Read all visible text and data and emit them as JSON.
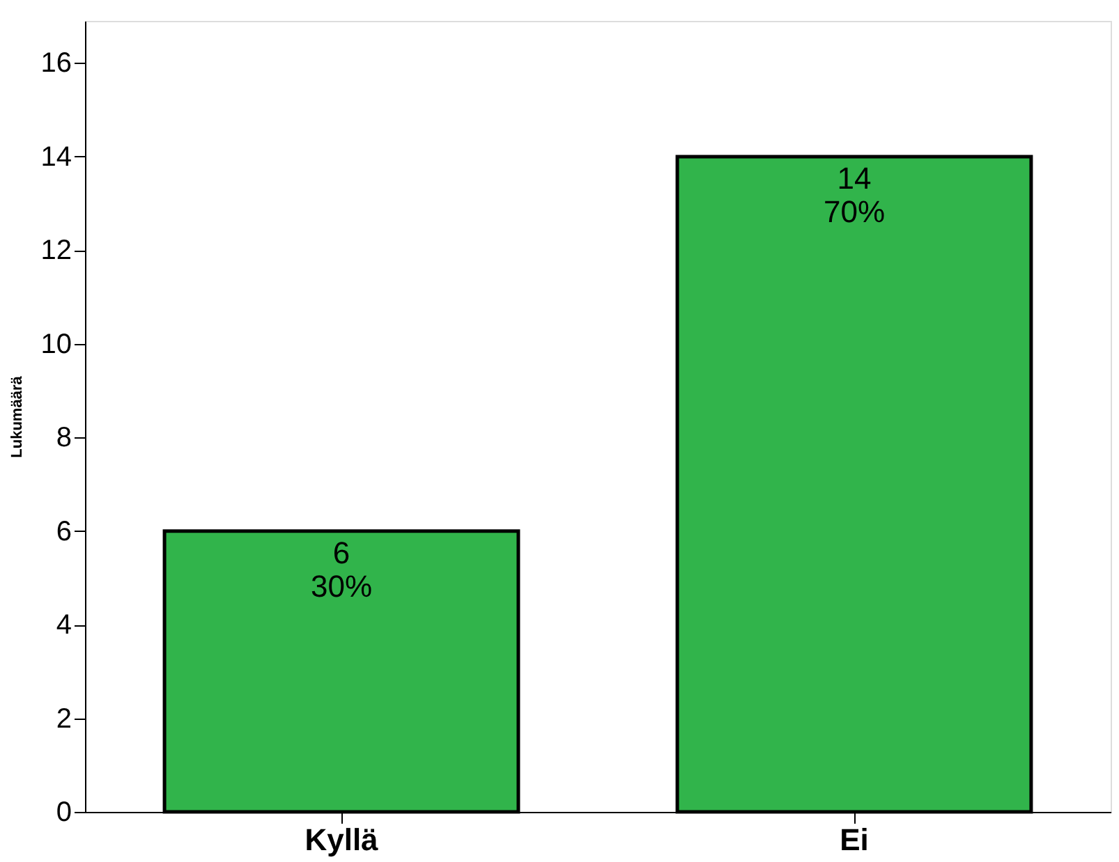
{
  "chart_data": {
    "type": "bar",
    "ylabel": "Lukumäärä",
    "categories": [
      "Kyllä",
      "Ei"
    ],
    "values": [
      6,
      14
    ],
    "value_labels": [
      "6\n30%",
      "14\n70%"
    ],
    "color": "#31b44b",
    "ylim": [
      0,
      16.9
    ],
    "yticks": [
      0,
      2,
      4,
      6,
      8,
      10,
      12,
      14,
      16
    ],
    "grid": false
  }
}
